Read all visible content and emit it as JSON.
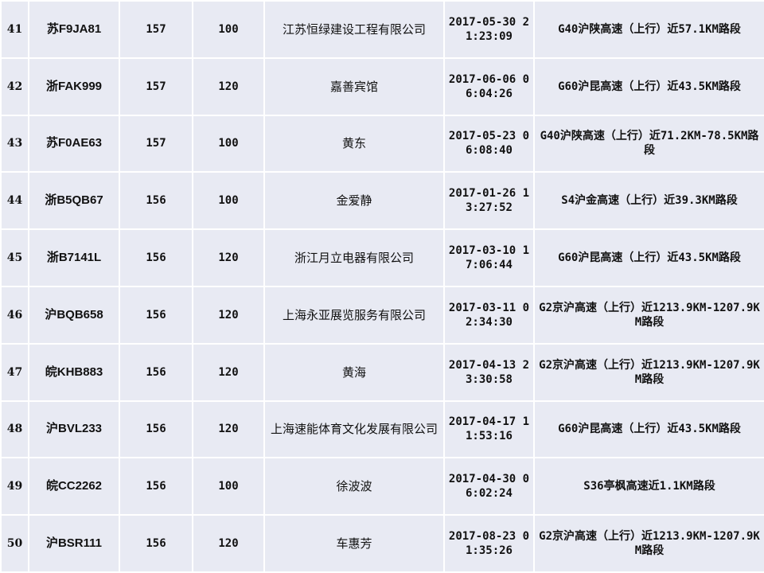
{
  "rows": [
    {
      "no": "41",
      "plate": "苏F9JA81",
      "speed": "157",
      "limit": "100",
      "owner": "江苏恒绿建设工程有限公司",
      "time": "2017-05-30 21:23:09",
      "location": "G40沪陕高速（上行）近57.1KM路段"
    },
    {
      "no": "42",
      "plate": "浙FAK999",
      "speed": "157",
      "limit": "120",
      "owner": "嘉善宾馆",
      "time": "2017-06-06 06:04:26",
      "location": "G60沪昆高速（上行）近43.5KM路段"
    },
    {
      "no": "43",
      "plate": "苏F0AE63",
      "speed": "157",
      "limit": "100",
      "owner": "黄东",
      "time": "2017-05-23 06:08:40",
      "location": "G40沪陕高速（上行）近71.2KM-78.5KM路段"
    },
    {
      "no": "44",
      "plate": "浙B5QB67",
      "speed": "156",
      "limit": "100",
      "owner": "金爱静",
      "time": "2017-01-26 13:27:52",
      "location": "S4沪金高速（上行）近39.3KM路段"
    },
    {
      "no": "45",
      "plate": "浙B7141L",
      "speed": "156",
      "limit": "120",
      "owner": "浙江月立电器有限公司",
      "time": "2017-03-10 17:06:44",
      "location": "G60沪昆高速（上行）近43.5KM路段"
    },
    {
      "no": "46",
      "plate": "沪BQB658",
      "speed": "156",
      "limit": "120",
      "owner": "上海永亚展览服务有限公司",
      "time": "2017-03-11 02:34:30",
      "location": "G2京沪高速（上行）近1213.9KM-1207.9KM路段"
    },
    {
      "no": "47",
      "plate": "皖KHB883",
      "speed": "156",
      "limit": "120",
      "owner": "黄海",
      "time": "2017-04-13 23:30:58",
      "location": "G2京沪高速（上行）近1213.9KM-1207.9KM路段"
    },
    {
      "no": "48",
      "plate": "沪BVL233",
      "speed": "156",
      "limit": "120",
      "owner": "上海速能体育文化发展有限公司",
      "time": "2017-04-17 11:53:16",
      "location": "G60沪昆高速（上行）近43.5KM路段"
    },
    {
      "no": "49",
      "plate": "皖CC2262",
      "speed": "156",
      "limit": "100",
      "owner": "徐波波",
      "time": "2017-04-30 06:02:24",
      "location": "S36亭枫高速近1.1KM路段"
    },
    {
      "no": "50",
      "plate": "沪BSR111",
      "speed": "156",
      "limit": "120",
      "owner": "车惠芳",
      "time": "2017-08-23 01:35:26",
      "location": "G2京沪高速（上行）近1213.9KM-1207.9KM路段"
    }
  ]
}
